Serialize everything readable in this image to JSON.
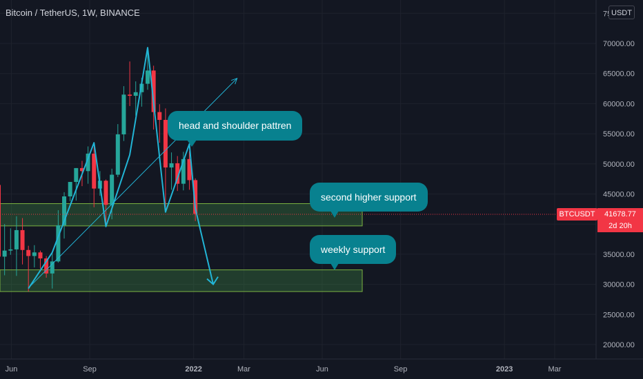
{
  "header": {
    "title": "Bitcoin / TetherUS, 1W, BINANCE",
    "unit_button": "USDT"
  },
  "price_axis": {
    "labels": [
      "75000.00",
      "70000.00",
      "65000.00",
      "60000.00",
      "55000.00",
      "50000.00",
      "45000.00",
      "40000.00",
      "35000.00",
      "30000.00",
      "25000.00",
      "20000.00"
    ],
    "last_price_symbol": "BTCUSDT",
    "last_price": "41678.77",
    "countdown": "2d 20h"
  },
  "time_axis": {
    "labels": [
      "Jun",
      "Sep",
      "2022",
      "Mar",
      "Jun",
      "Sep",
      "2023",
      "Mar"
    ]
  },
  "annotations": {
    "pattern": "head and shoulder pattren",
    "second_support": "second higher support",
    "weekly_support": "weekly support"
  },
  "colors": {
    "background": "#131722",
    "up": "#26a69a",
    "down": "#f23645",
    "drawing": "#22b5d6",
    "zone_fill": "rgba(76,175,80,0.25)",
    "zone_border": "#7cb342",
    "bubble": "#08818f"
  },
  "chart_data": {
    "type": "candlestick",
    "title": "Bitcoin / TetherUS, 1W, BINANCE",
    "interval": "1W",
    "y_axis": {
      "unit": "USDT",
      "range": [
        18500,
        76000
      ]
    },
    "x_axis": {
      "range": [
        "2021-05-17",
        "2023-04-17"
      ]
    },
    "candles": [
      {
        "date": "2021-05-17",
        "o": 46500,
        "h": 46900,
        "l": 31000,
        "c": 34600
      },
      {
        "date": "2021-05-24",
        "o": 34600,
        "h": 40000,
        "l": 31500,
        "c": 35600
      },
      {
        "date": "2021-05-31",
        "o": 35600,
        "h": 39300,
        "l": 34900,
        "c": 35800
      },
      {
        "date": "2021-06-07",
        "o": 35800,
        "h": 41300,
        "l": 31400,
        "c": 39000
      },
      {
        "date": "2021-06-14",
        "o": 39000,
        "h": 41000,
        "l": 33300,
        "c": 35700
      },
      {
        "date": "2021-06-21",
        "o": 35700,
        "h": 36400,
        "l": 28800,
        "c": 34700
      },
      {
        "date": "2021-06-28",
        "o": 34700,
        "h": 36500,
        "l": 32800,
        "c": 35300
      },
      {
        "date": "2021-07-05",
        "o": 35300,
        "h": 35600,
        "l": 32600,
        "c": 34300
      },
      {
        "date": "2021-07-12",
        "o": 34300,
        "h": 34700,
        "l": 31100,
        "c": 31800
      },
      {
        "date": "2021-07-19",
        "o": 31800,
        "h": 35400,
        "l": 29300,
        "c": 33800
      },
      {
        "date": "2021-07-26",
        "o": 33800,
        "h": 42300,
        "l": 33600,
        "c": 39800
      },
      {
        "date": "2021-08-02",
        "o": 39800,
        "h": 45300,
        "l": 37600,
        "c": 44600
      },
      {
        "date": "2021-08-09",
        "o": 44600,
        "h": 47000,
        "l": 43800,
        "c": 47000
      },
      {
        "date": "2021-08-16",
        "o": 47000,
        "h": 49300,
        "l": 43900,
        "c": 49300
      },
      {
        "date": "2021-08-23",
        "o": 49300,
        "h": 50500,
        "l": 46300,
        "c": 48800
      },
      {
        "date": "2021-08-30",
        "o": 48800,
        "h": 52900,
        "l": 46700,
        "c": 51700
      },
      {
        "date": "2021-09-06",
        "o": 51700,
        "h": 52800,
        "l": 42800,
        "c": 45900
      },
      {
        "date": "2021-09-13",
        "o": 45900,
        "h": 48800,
        "l": 44700,
        "c": 47200
      },
      {
        "date": "2021-09-20",
        "o": 47200,
        "h": 47400,
        "l": 39600,
        "c": 43200
      },
      {
        "date": "2021-09-27",
        "o": 43200,
        "h": 49200,
        "l": 40800,
        "c": 48200
      },
      {
        "date": "2021-10-04",
        "o": 48200,
        "h": 56600,
        "l": 47800,
        "c": 54900
      },
      {
        "date": "2021-10-11",
        "o": 54900,
        "h": 62900,
        "l": 53800,
        "c": 61500
      },
      {
        "date": "2021-10-18",
        "o": 61500,
        "h": 67000,
        "l": 59600,
        "c": 61300
      },
      {
        "date": "2021-10-25",
        "o": 61300,
        "h": 63700,
        "l": 58000,
        "c": 61900
      },
      {
        "date": "2021-11-01",
        "o": 61900,
        "h": 64300,
        "l": 59500,
        "c": 63300
      },
      {
        "date": "2021-11-08",
        "o": 63300,
        "h": 69000,
        "l": 62300,
        "c": 65500
      },
      {
        "date": "2021-11-15",
        "o": 65500,
        "h": 66300,
        "l": 55700,
        "c": 58600
      },
      {
        "date": "2021-11-22",
        "o": 58600,
        "h": 59900,
        "l": 53500,
        "c": 57300
      },
      {
        "date": "2021-11-29",
        "o": 57300,
        "h": 59200,
        "l": 42000,
        "c": 49400
      },
      {
        "date": "2021-12-06",
        "o": 49400,
        "h": 51900,
        "l": 45700,
        "c": 50100
      },
      {
        "date": "2021-12-13",
        "o": 50100,
        "h": 51300,
        "l": 45500,
        "c": 46700
      },
      {
        "date": "2021-12-20",
        "o": 46700,
        "h": 52000,
        "l": 45600,
        "c": 50800
      },
      {
        "date": "2021-12-27",
        "o": 50800,
        "h": 52100,
        "l": 45700,
        "c": 47300
      },
      {
        "date": "2022-01-03",
        "o": 47300,
        "h": 47600,
        "l": 40500,
        "c": 41700
      }
    ],
    "zones": [
      {
        "label": "second higher support",
        "low": 39700,
        "high": 43400,
        "from": "2021-05-17",
        "to": "2022-07-18"
      },
      {
        "label": "weekly support",
        "low": 28800,
        "high": 32400,
        "from": "2021-05-17",
        "to": "2022-07-18"
      }
    ],
    "pattern_path": [
      {
        "date": "2021-06-21",
        "price": 29300
      },
      {
        "date": "2021-07-19",
        "price": 35300
      },
      {
        "date": "2021-09-06",
        "price": 53500
      },
      {
        "date": "2021-09-20",
        "price": 39600
      },
      {
        "date": "2021-10-18",
        "price": 51500
      },
      {
        "date": "2021-11-08",
        "price": 69300
      },
      {
        "date": "2021-11-29",
        "price": 42000
      },
      {
        "date": "2021-12-27",
        "price": 53300
      },
      {
        "date": "2022-01-03",
        "price": 42600
      },
      {
        "date": "2022-01-24",
        "price": 30000
      }
    ],
    "trend_line": [
      {
        "date": "2021-06-21",
        "price": 29400
      },
      {
        "date": "2022-02-21",
        "price": 64200
      }
    ]
  }
}
